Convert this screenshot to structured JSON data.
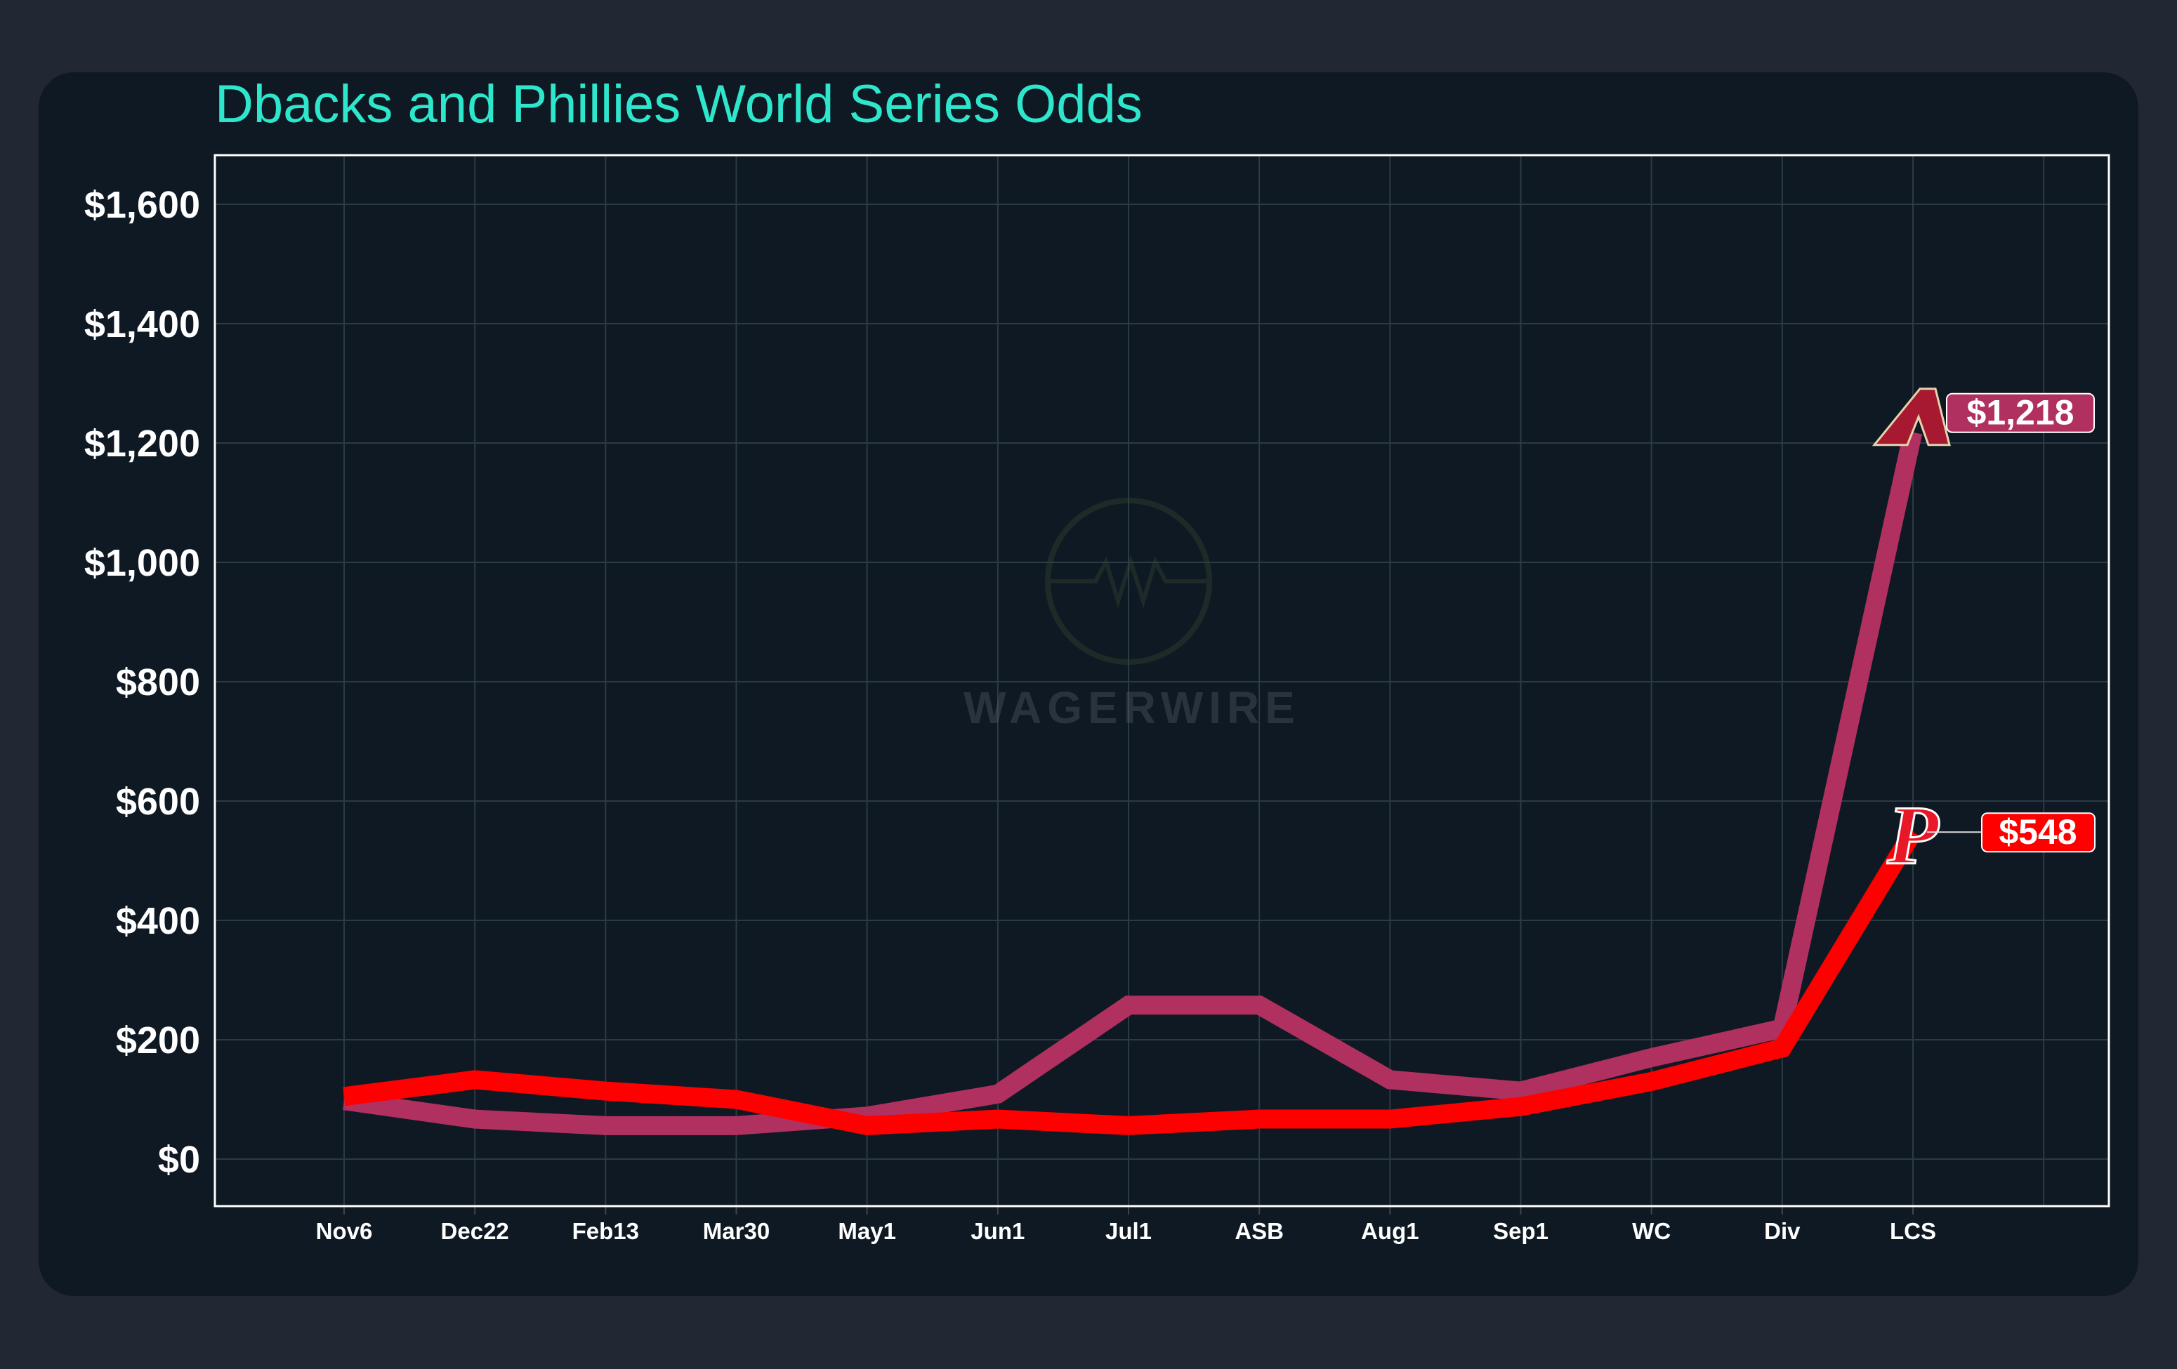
{
  "chart_data": {
    "type": "line",
    "title": "Dbacks and Phillies World Series Odds",
    "xlabel": "",
    "ylabel": "",
    "categories": [
      "Nov6",
      "Dec22",
      "Feb13",
      "Mar30",
      "May1",
      "Jun1",
      "Jul1",
      "ASB",
      "Aug1",
      "Sep1",
      "WC",
      "Div",
      "LCS"
    ],
    "ylim": [
      -75,
      1680
    ],
    "yticks": [
      0,
      200,
      400,
      600,
      800,
      1000,
      1200,
      1400,
      1600
    ],
    "ytick_labels": [
      "$0",
      "$200",
      "$400",
      "$600",
      "$800",
      "$1,000",
      "$1,200",
      "$1,400",
      "$1,600"
    ],
    "grid": true,
    "series": [
      {
        "team": "Dbacks",
        "color": "#b03060",
        "values": [
          98,
          67,
          56,
          56,
          72,
          109,
          258,
          258,
          133,
          114,
          170,
          219,
          1218
        ],
        "end_label": "$1,218",
        "logo": "diamondbacks-a-logo"
      },
      {
        "team": "Phillies",
        "color": "#ff0000",
        "values": [
          105,
          133,
          114,
          100,
          56,
          67,
          56,
          67,
          67,
          88,
          130,
          186,
          548
        ],
        "end_label": "$548",
        "logo": "phillies-p-logo"
      }
    ]
  },
  "watermark": "WAGERWIRE"
}
